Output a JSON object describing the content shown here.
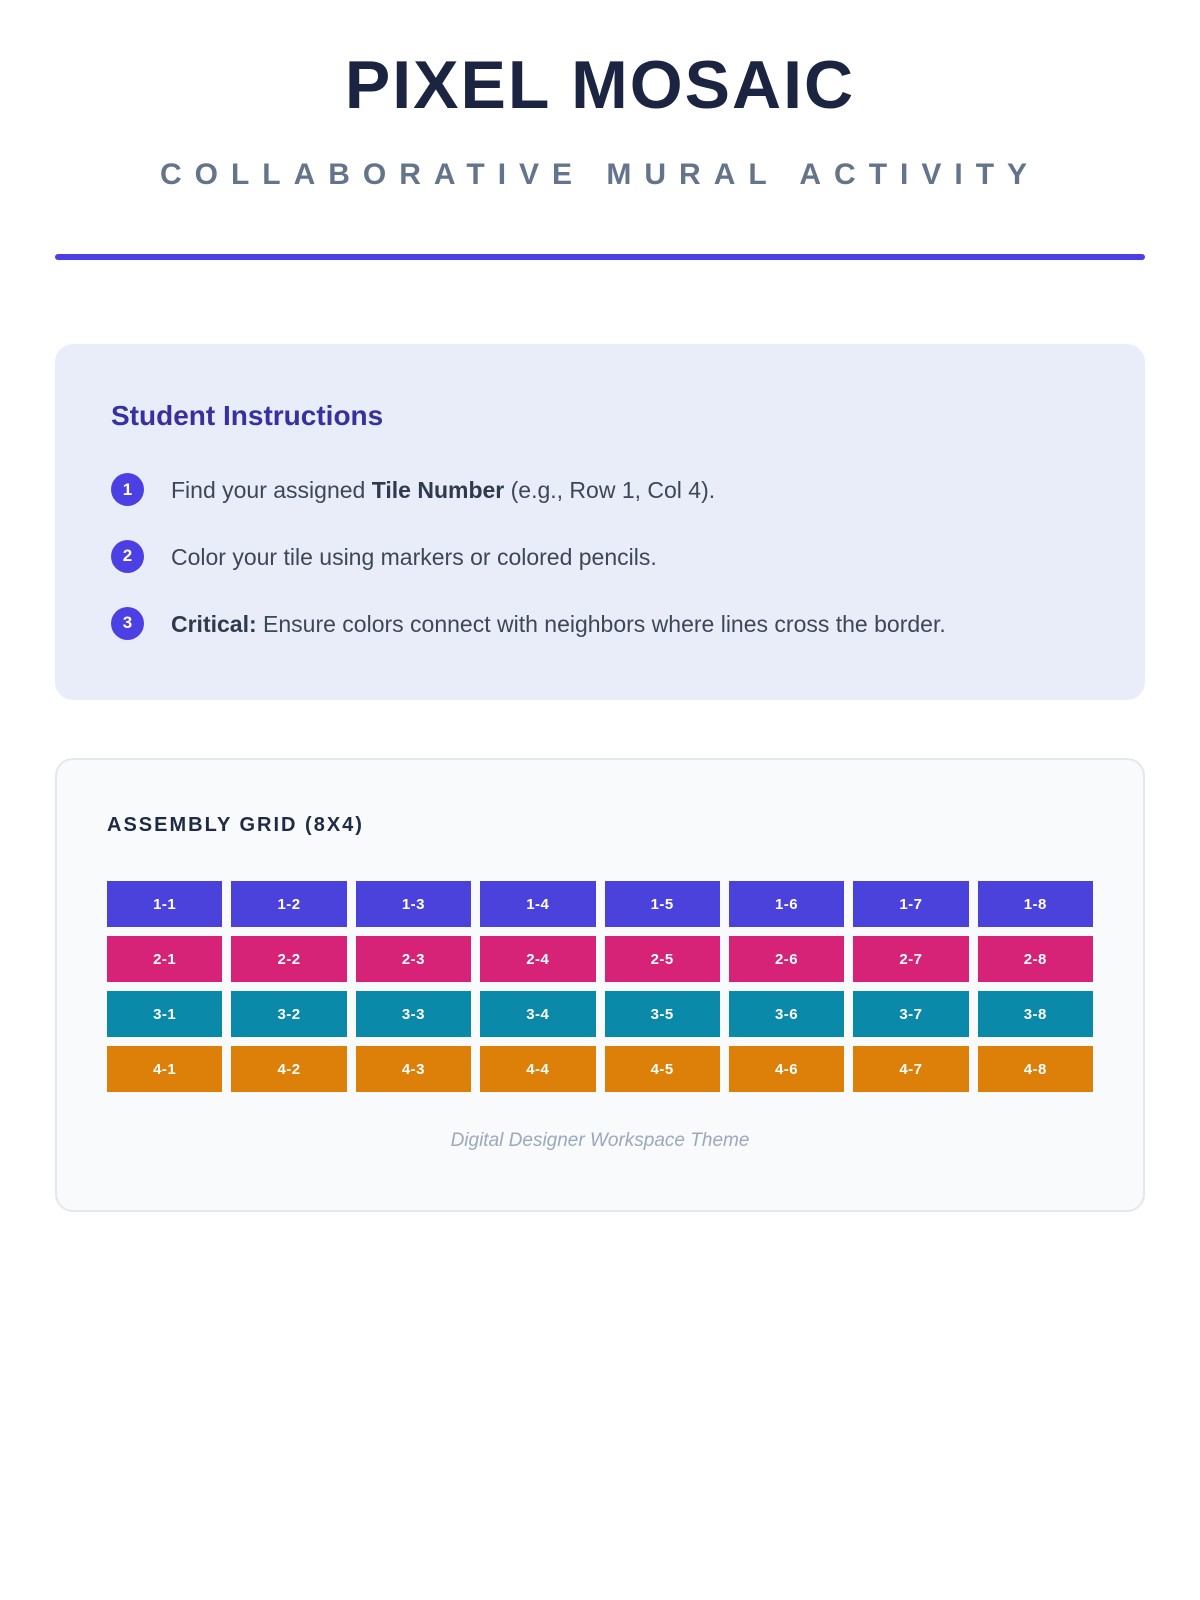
{
  "header": {
    "title": "PIXEL MOSAIC",
    "subtitle": "COLLABORATIVE MURAL ACTIVITY"
  },
  "instructions": {
    "heading": "Student Instructions",
    "steps": [
      {
        "num": "1",
        "text_before": "Find your assigned ",
        "text_bold": "Tile Number",
        "text_after": " (e.g., Row 1, Col 4)."
      },
      {
        "num": "2",
        "text_before": "",
        "text_bold": "",
        "text_after": "Color your tile using markers or colored pencils."
      },
      {
        "num": "3",
        "text_before": "",
        "text_bold": "Critical:",
        "text_after": " Ensure colors connect with neighbors where lines cross the border."
      }
    ]
  },
  "grid": {
    "heading": "ASSEMBLY GRID (8X4)",
    "caption": "Digital Designer Workspace Theme",
    "rows": 4,
    "cols": 8,
    "row_colors": [
      "#4b42dc",
      "#d62277",
      "#0a8aa8",
      "#dc800a"
    ],
    "tiles": [
      [
        "1-1",
        "1-2",
        "1-3",
        "1-4",
        "1-5",
        "1-6",
        "1-7",
        "1-8"
      ],
      [
        "2-1",
        "2-2",
        "2-3",
        "2-4",
        "2-5",
        "2-6",
        "2-7",
        "2-8"
      ],
      [
        "3-1",
        "3-2",
        "3-3",
        "3-4",
        "3-5",
        "3-6",
        "3-7",
        "3-8"
      ],
      [
        "4-1",
        "4-2",
        "4-3",
        "4-4",
        "4-5",
        "4-6",
        "4-7",
        "4-8"
      ]
    ]
  },
  "colors": {
    "accent": "#4c40e4",
    "title_text": "#1b2440",
    "subtitle_text": "#64748b",
    "instructions_bg": "#e9edfa",
    "instructions_heading": "#37309f",
    "grid_card_bg": "#f8fafc"
  }
}
